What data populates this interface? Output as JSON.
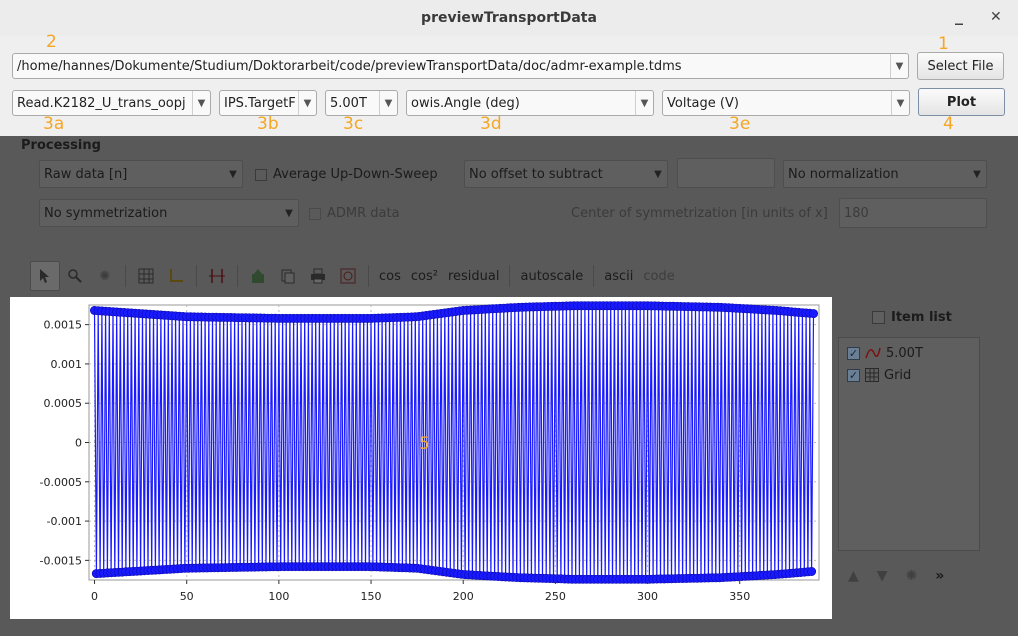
{
  "window": {
    "title": "previewTransportData",
    "minimize_icon": "minimize-icon",
    "close_icon": "close-icon"
  },
  "annotations": {
    "a1": "1",
    "a2": "2",
    "a3a": "3a",
    "a3b": "3b",
    "a3c": "3c",
    "a3d": "3d",
    "a3e": "3e",
    "a4": "4",
    "a5": "5"
  },
  "file": {
    "path": "/home/hannes/Dokumente/Studium/Doktorarbeit/code/previewTransportData/doc/admr-example.tdms",
    "select_label": "Select File"
  },
  "selectors": {
    "group": "Read.K2182_U_trans_oopj",
    "channel": "IPS.TargetF",
    "field": "5.00T",
    "x_axis": "owis.Angle (deg)",
    "y_axis": "Voltage (V)",
    "plot_label": "Plot"
  },
  "processing": {
    "heading": "Processing",
    "data_mode": "Raw data [n]",
    "average_label": "Average Up-Down-Sweep",
    "offset": "No offset to subtract",
    "offset_value": "",
    "normalization": "No normalization",
    "symmetrization": "No symmetrization",
    "admr_label": "ADMR data",
    "center_label": "Center of symmetrization [in units of x]",
    "center_value": "180"
  },
  "toolbar": {
    "cos": "cos",
    "cos2": "cos²",
    "residual": "residual",
    "autoscale": "autoscale",
    "ascii": "ascii",
    "code": "code"
  },
  "item_list": {
    "header": "Item list",
    "items": [
      {
        "label": "5.00T",
        "icon": "curve-icon"
      },
      {
        "label": "Grid",
        "icon": "grid-icon"
      }
    ]
  },
  "chart_data": {
    "type": "scatter",
    "title": "",
    "xlabel": "",
    "ylabel": "",
    "xlim": [
      -3,
      393
    ],
    "ylim": [
      -0.00175,
      0.00175
    ],
    "x_ticks": [
      0,
      50,
      100,
      150,
      200,
      250,
      300,
      350
    ],
    "y_ticks": [
      0.0015,
      0.001,
      0.0005,
      0,
      -0.0005,
      -0.001,
      -0.0015
    ],
    "y_tick_labels": [
      "0.0015",
      "0.001",
      "0.0005",
      "0",
      "-0.0005",
      "-0.001",
      "-0.0015"
    ],
    "grid": true,
    "series": [
      {
        "name": "5.00T",
        "color": "#1a1aff",
        "x_start": 0,
        "x_end": 390,
        "x_step": 2,
        "envelope_x": [
          0,
          50,
          100,
          150,
          175,
          200,
          230,
          260,
          300,
          340,
          370,
          390
        ],
        "envelope_upper": [
          0.00168,
          0.0016,
          0.00158,
          0.00158,
          0.0016,
          0.00168,
          0.00172,
          0.00174,
          0.00174,
          0.00172,
          0.00168,
          0.00164
        ],
        "envelope_lower": [
          -0.00167,
          -0.0016,
          -0.00158,
          -0.00158,
          -0.0016,
          -0.00168,
          -0.00172,
          -0.00174,
          -0.00174,
          -0.00172,
          -0.00168,
          -0.00164
        ]
      }
    ]
  },
  "colors": {
    "accent": "#f5a623",
    "series": "#1a1aff",
    "check": "#6a7e94"
  }
}
